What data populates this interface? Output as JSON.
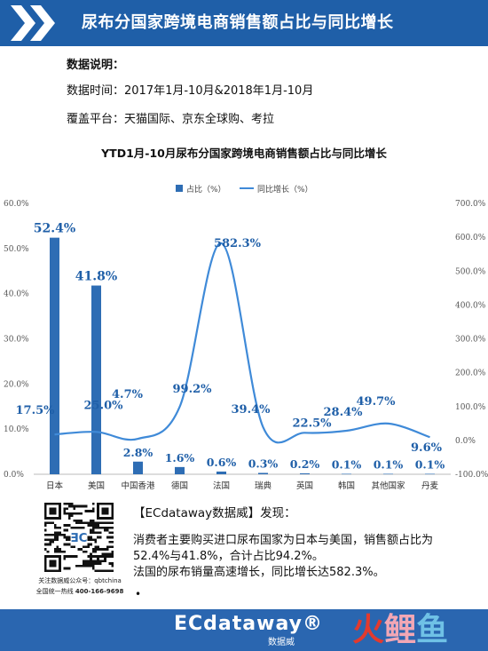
{
  "header": {
    "title": "尿布分国家跨境电商销售额占比与同比增长"
  },
  "info": {
    "heading": "数据说明：",
    "time_line": "数据时间：2017年1月-10月&2018年1月-10月",
    "platform_line": "覆盖平台：天猫国际、京东全球购、考拉"
  },
  "chart_data": {
    "type": "bar",
    "title": "YTD1月-10月尿布分国家跨境电商销售额占比与同比增长",
    "categories": [
      "日本",
      "美国",
      "中国香港",
      "德国",
      "法国",
      "瑞典",
      "英国",
      "韩国",
      "其他国家",
      "丹麦"
    ],
    "series": [
      {
        "name": "占比（%）",
        "type": "bar",
        "axis": "left",
        "values": [
          52.4,
          41.8,
          2.8,
          1.6,
          0.6,
          0.3,
          0.2,
          0.1,
          0.1,
          0.1
        ],
        "labels": [
          "52.4%",
          "41.8%",
          "2.8%",
          "1.6%",
          "0.6%",
          "0.3%",
          "0.2%",
          "0.1%",
          "0.1%",
          "0.1%"
        ]
      },
      {
        "name": "同比增长（%）",
        "type": "line",
        "axis": "right",
        "values": [
          17.5,
          25.0,
          4.7,
          99.2,
          582.3,
          39.4,
          22.5,
          28.4,
          49.7,
          9.6
        ],
        "labels": [
          "17.5%",
          "25.0%",
          "4.7%",
          "99.2%",
          "582.3%",
          "39.4%",
          "22.5%",
          "28.4%",
          "49.7%",
          "9.6%"
        ]
      }
    ],
    "left_axis": {
      "ylim": [
        0,
        60
      ],
      "ticks": [
        "0.0%",
        "10.0%",
        "20.0%",
        "30.0%",
        "40.0%",
        "50.0%",
        "60.0%"
      ]
    },
    "right_axis": {
      "ylim": [
        -100,
        700
      ],
      "ticks": [
        "-100.0%",
        "0.0%",
        "100.0%",
        "200.0%",
        "300.0%",
        "400.0%",
        "500.0%",
        "600.0%",
        "700.0%"
      ]
    },
    "legend_position": "top",
    "grid": false,
    "colors": {
      "bar": "#2e6db4",
      "line": "#3f8ad8",
      "label": "#1f5fa8"
    }
  },
  "findings": {
    "title": "【ECdataway数据威】发现：",
    "line1": "消费者主要购买进口尿布国家为日本与美国，销售额占比为",
    "line2": "52.4%与41.8%，合计占比94.2%。",
    "line3": "法国的尿布销量高速增长，同比增长达582.3%。"
  },
  "qr": {
    "caption1": "关注数据威公众号：qbtchina",
    "caption2_label": "全国统一热线",
    "caption2_value": "400-166-9698"
  },
  "footer": {
    "logo": "ECdataway®",
    "logo_sub": "数据威",
    "watermark": [
      "火",
      "鲤",
      "鱼"
    ]
  }
}
